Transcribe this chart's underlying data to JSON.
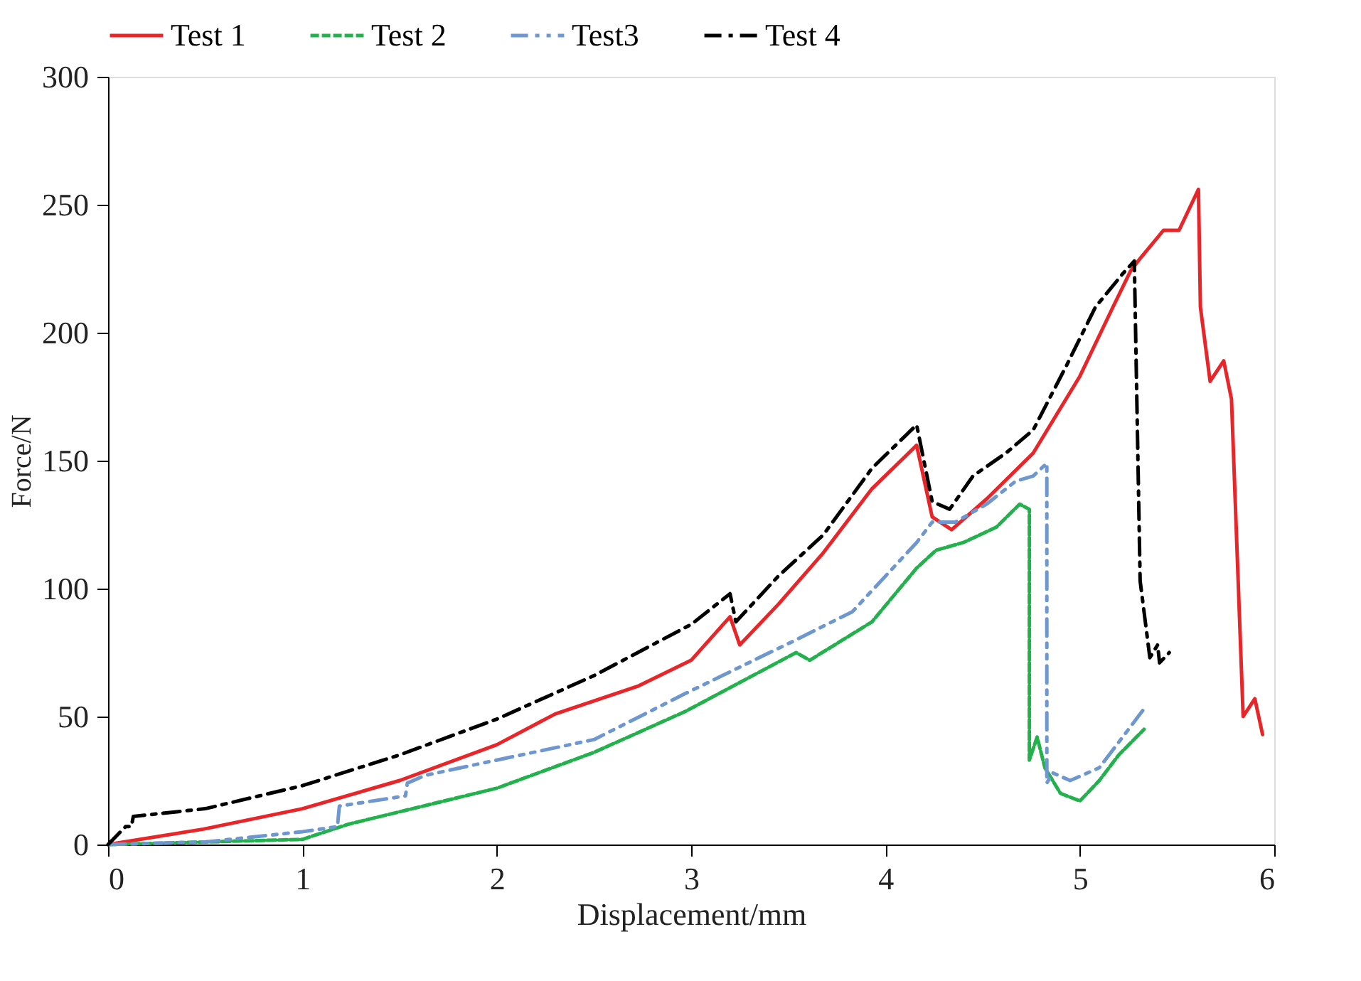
{
  "chart_data": {
    "type": "line",
    "xlabel": "Displacement/mm",
    "ylabel": "Force/N",
    "xlim": [
      0,
      6
    ],
    "xticks": [
      0,
      1,
      2,
      3,
      4,
      5,
      6
    ],
    "ylim": [
      0,
      300
    ],
    "yticks": [
      0,
      50,
      100,
      150,
      200,
      250,
      300
    ],
    "grid": false,
    "legend": "top",
    "marker": "none",
    "series": [
      {
        "name": "Test 1",
        "color": "#e8262a",
        "line_style": "solid",
        "x": [
          0,
          0.49,
          1,
          1.5,
          2,
          2.3,
          2.73,
          3,
          3.2,
          3.25,
          3.45,
          3.68,
          3.93,
          4.16,
          4.24,
          4.34,
          4.52,
          4.76,
          5.0,
          5.17,
          5.26,
          5.31,
          5.43,
          5.51,
          5.61,
          5.62,
          5.67,
          5.74,
          5.78,
          5.84,
          5.9,
          5.94
        ],
        "values": [
          0,
          6,
          14,
          25,
          39,
          51,
          62,
          72,
          89,
          78,
          94,
          114,
          139,
          156,
          128,
          123,
          135,
          153,
          183,
          210,
          224,
          229,
          240,
          240,
          256,
          210,
          181,
          189,
          174,
          50,
          57,
          43
        ]
      },
      {
        "name": "Test 2",
        "color": "#22b14c",
        "line_style": "dashed",
        "x": [
          0,
          0.5,
          1,
          1.24,
          2,
          2.5,
          2.97,
          3.54,
          3.61,
          3.93,
          4.16,
          4.26,
          4.4,
          4.57,
          4.69,
          4.74,
          4.74,
          4.78,
          4.82,
          4.9,
          5.0,
          5.1,
          5.2,
          5.33
        ],
        "values": [
          0,
          1,
          2,
          8,
          22,
          36,
          52,
          75,
          72,
          87,
          108,
          115,
          118,
          124,
          133,
          131,
          33,
          42,
          30,
          20,
          17,
          25,
          35,
          45
        ]
      },
      {
        "name": "Test3",
        "color": "#6f97cf",
        "line_style": "dashdotdot",
        "x": [
          0,
          0.5,
          1,
          1.18,
          1.19,
          1.53,
          1.54,
          1.63,
          2,
          2.5,
          2.97,
          3.54,
          3.83,
          4.16,
          4.24,
          4.36,
          4.52,
          4.67,
          4.76,
          4.83,
          4.83,
          4.86,
          4.95,
          5.1,
          5.2,
          5.33
        ],
        "values": [
          0,
          1,
          5,
          7,
          15,
          19,
          24,
          27,
          33,
          41,
          59,
          80,
          91,
          118,
          126,
          126,
          133,
          142,
          144,
          149,
          24,
          28,
          25,
          30,
          40,
          53
        ]
      },
      {
        "name": "Test 4",
        "color": "#000000",
        "line_style": "dashdot",
        "x": [
          0,
          0.09,
          0.12,
          0.13,
          0.5,
          1,
          1.5,
          2,
          2.5,
          3,
          3.2,
          3.23,
          3.45,
          3.68,
          3.93,
          4.16,
          4.24,
          4.33,
          4.45,
          4.62,
          4.76,
          4.93,
          5.08,
          5.22,
          5.28,
          5.31,
          5.36,
          5.4,
          5.41,
          5.46
        ],
        "values": [
          0,
          7,
          7,
          11,
          14,
          23,
          35,
          49,
          66,
          86,
          98,
          87,
          105,
          121,
          147,
          164,
          134,
          131,
          144,
          153,
          162,
          187,
          210,
          223,
          228,
          103,
          73,
          78,
          71,
          75
        ]
      }
    ]
  }
}
